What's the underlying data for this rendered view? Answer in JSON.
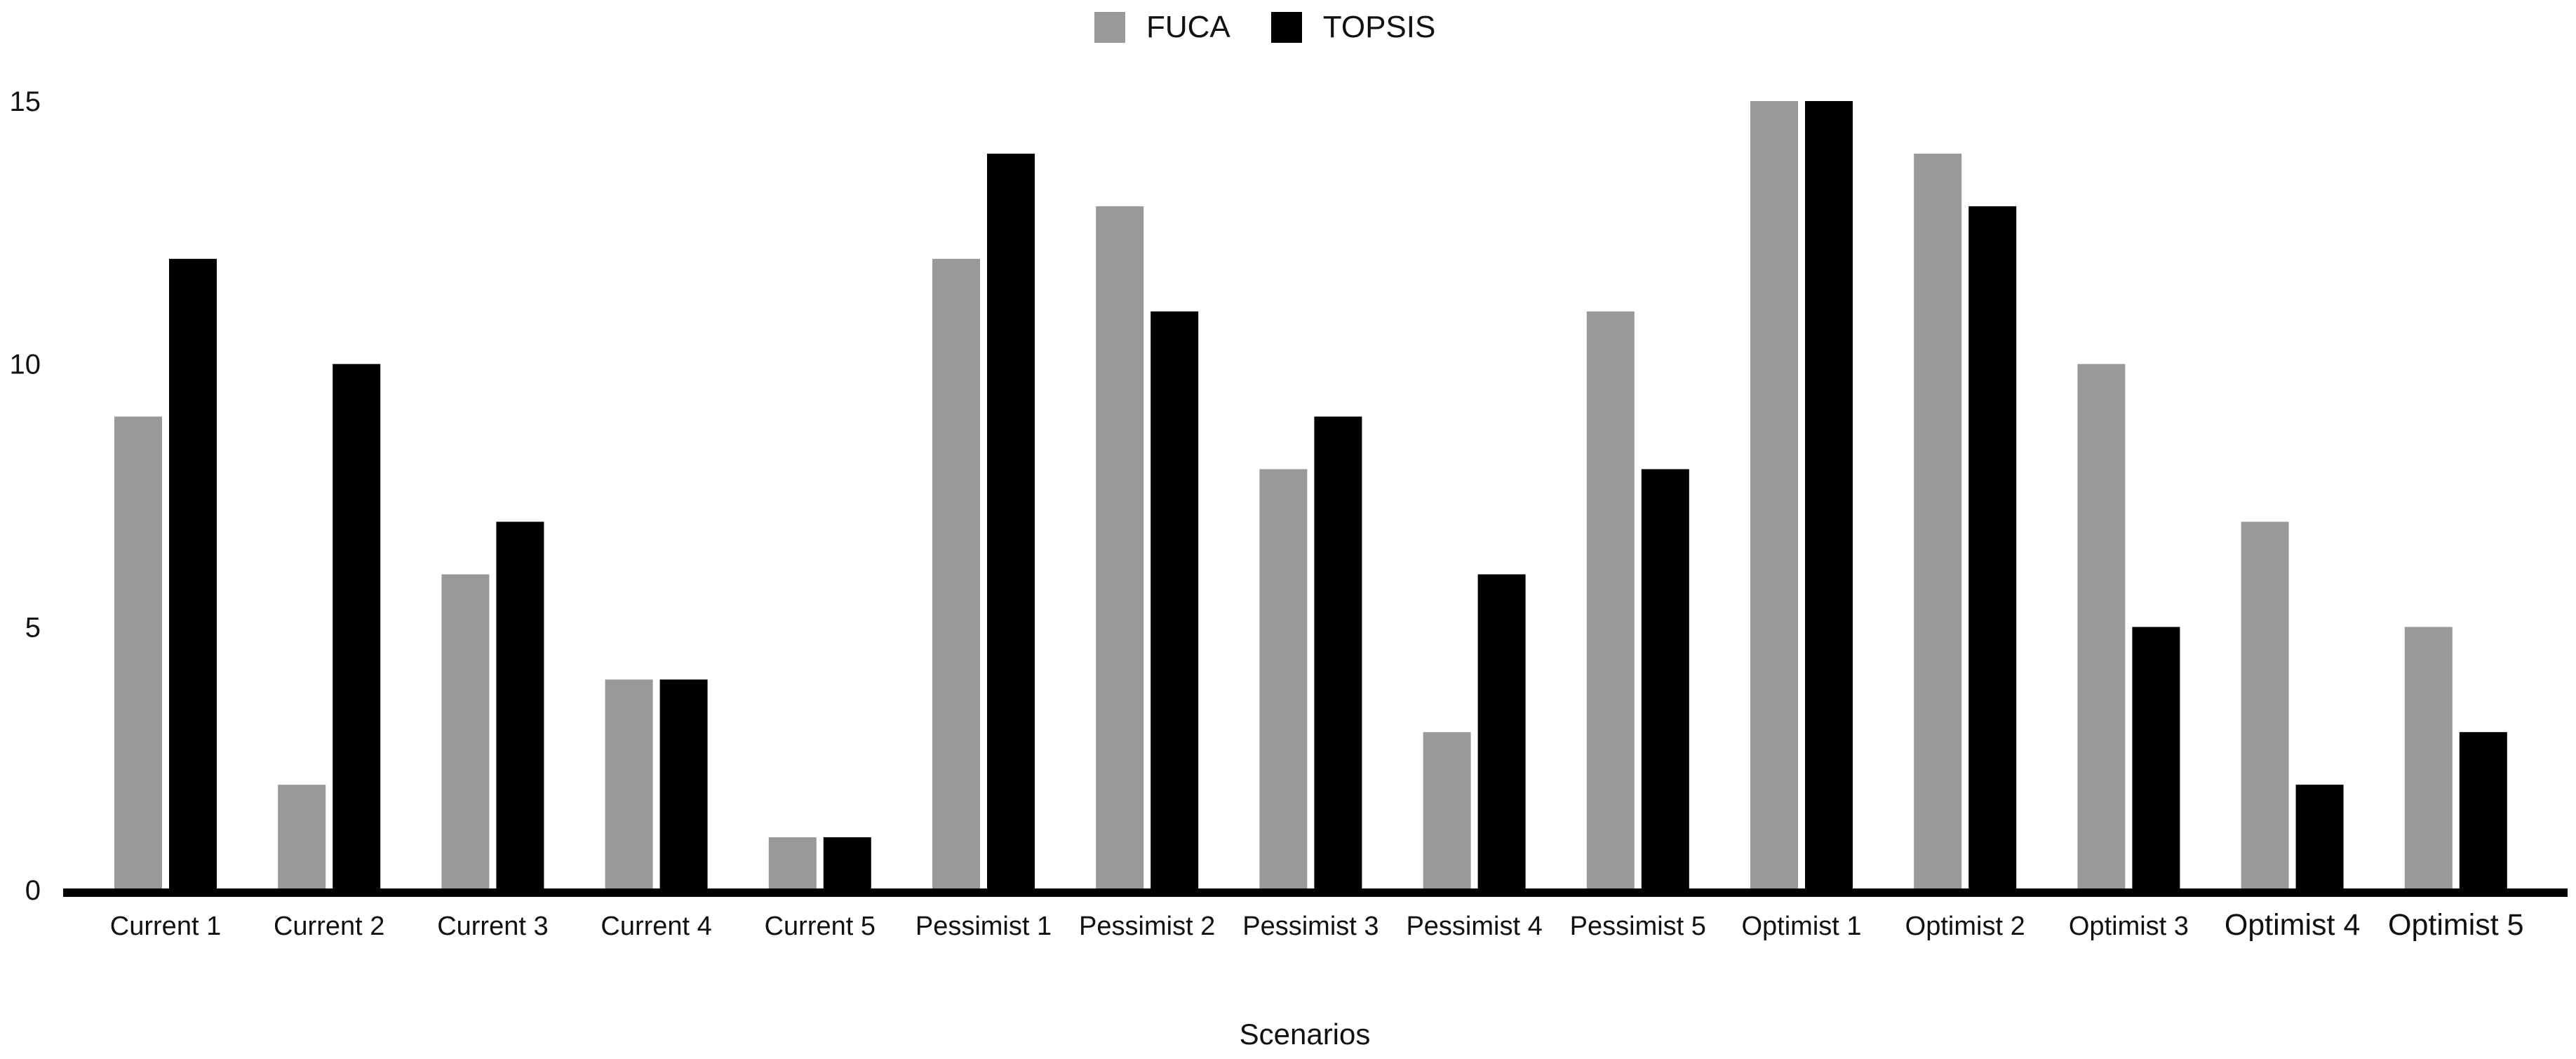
{
  "chart_data": {
    "type": "bar",
    "title": "",
    "xlabel": "Scenarios",
    "ylabel": "",
    "ylim": [
      0,
      15
    ],
    "yticks": [
      "0",
      "5",
      "10",
      "15"
    ],
    "legend_position": "top-center",
    "grid": false,
    "categories": [
      "Current 1",
      "Current 2",
      "Current 3",
      "Current 4",
      "Current 5",
      "Pessimist 1",
      "Pessimist 2",
      "Pessimist 3",
      "Pessimist 4",
      "Pessimist 5",
      "Optimist 1",
      "Optimist 2",
      "Optimist 3",
      "Optimist 4",
      "Optimist 5"
    ],
    "series": [
      {
        "name": "FUCA",
        "color": "#999999",
        "values": [
          9,
          2,
          6,
          4,
          1,
          12,
          13,
          8,
          3,
          11,
          15,
          14,
          10,
          7,
          5
        ]
      },
      {
        "name": "TOPSIS",
        "color": "#000000",
        "values": [
          12,
          10,
          7,
          4,
          1,
          14,
          11,
          9,
          6,
          8,
          15,
          13,
          5,
          2,
          3
        ]
      }
    ]
  }
}
